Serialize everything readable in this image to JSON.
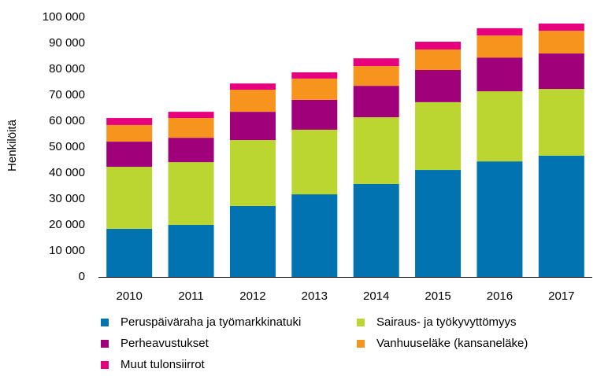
{
  "chart_data": {
    "type": "stacked_bar",
    "y_label": "Henkilöitä",
    "categories": [
      "2010",
      "2011",
      "2012",
      "2013",
      "2014",
      "2015",
      "2016",
      "2017"
    ],
    "series": [
      {
        "name": "Peruspäiväraha ja työmarkkinatuki",
        "color": "#0073b0",
        "values": [
          18.5,
          20,
          27.3,
          31.8,
          35.8,
          41.2,
          44.5,
          46.7
        ]
      },
      {
        "name": "Sairaus- ja työkyvyttömyys",
        "color": "#bcd631",
        "values": [
          23.9,
          24.2,
          25.4,
          24.9,
          25.7,
          26.1,
          27,
          25.7
        ]
      },
      {
        "name": "Perheavustukset",
        "color": "#a0007a",
        "values": [
          9.7,
          9.4,
          10.9,
          11.5,
          12.1,
          12.4,
          13,
          13.7
        ]
      },
      {
        "name": "Vanhuuseläke (kansaneläke)",
        "color": "#f7941d",
        "values": [
          6.4,
          7.6,
          8.5,
          8.2,
          7.6,
          7.9,
          8.5,
          8.7
        ]
      },
      {
        "name": "Muut tulonsiirrot",
        "color": "#e6007e",
        "values": [
          2.7,
          2.4,
          2.4,
          2.4,
          3.0,
          3.0,
          2.8,
          2.8
        ]
      }
    ],
    "ylim": [
      0,
      100
    ],
    "yticks": [
      0,
      {
        "value": 10,
        "label": "10 000"
      },
      {
        "value": 20,
        "label": "20 000"
      },
      {
        "value": 30,
        "label": "30 000"
      },
      {
        "value": 40,
        "label": "40 000"
      },
      {
        "value": 50,
        "label": "50 000"
      },
      {
        "value": 60,
        "label": "60 000"
      },
      {
        "value": 70,
        "label": "70 000"
      },
      {
        "value": 80,
        "label": "80 000"
      },
      {
        "value": 90,
        "label": "90 000"
      },
      {
        "value": 100,
        "label": "100 000"
      }
    ]
  }
}
